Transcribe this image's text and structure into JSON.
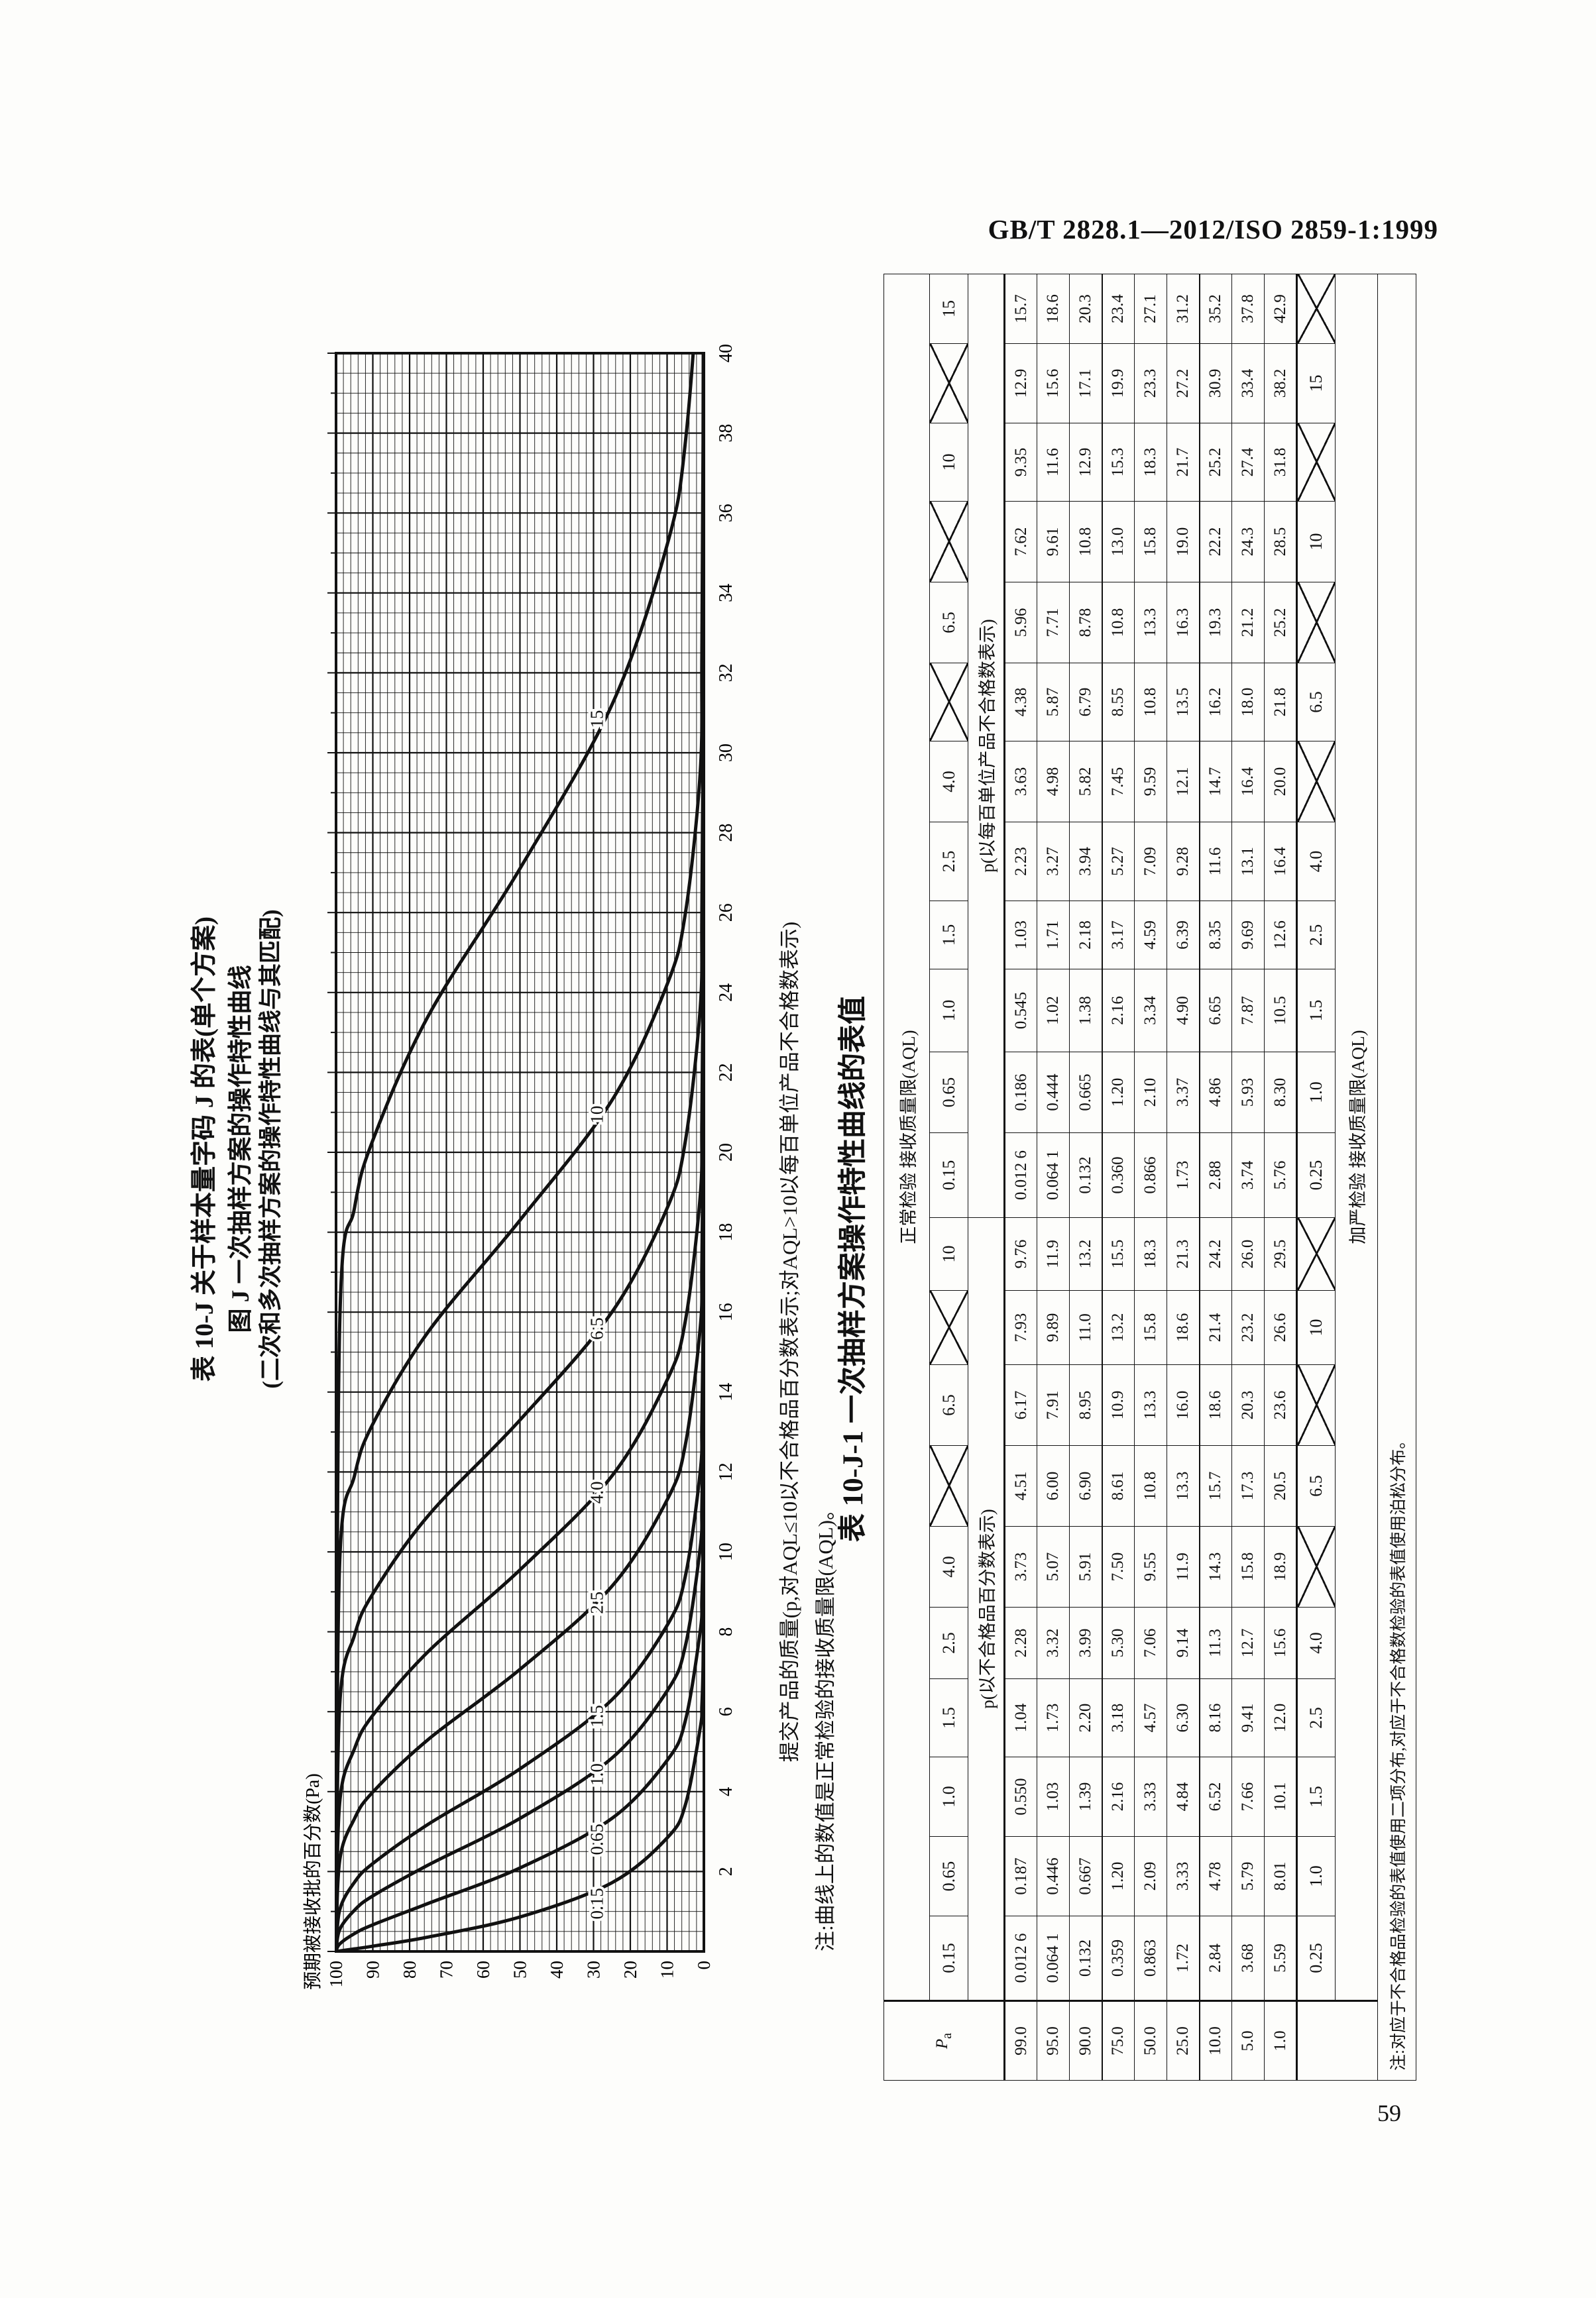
{
  "page": {
    "header_right": "GB/T 2828.1—2012/ISO 2859-1:1999",
    "page_number": "59"
  },
  "figure": {
    "title_line1": "表 10-J  关于样本量字码 J 的表(单个方案)",
    "title_line2": "图 J  一次抽样方案的操作特性曲线",
    "title_line3": "(二次和多次抽样方案的操作特性曲线与其匹配)",
    "y_axis_label": "预期被接收批的百分数(Pa)",
    "x_axis_caption": "提交产品的质量(p,对AQL≤10以不合格品百分数表示;对AQL>10以每百单位产品不合格数表示)",
    "note": "注:曲线上的数值是正常检验的接收质量限(AQL)。"
  },
  "chart_data": {
    "type": "line",
    "title": "图 J 一次抽样方案的操作特性曲线",
    "xlabel": "提交产品的质量(p)",
    "ylabel": "预期被接收批的百分数(Pa)",
    "xlim": [
      0,
      40
    ],
    "ylim": [
      0,
      100
    ],
    "x_tick_step": 2,
    "x_minor_grid": 0.5,
    "y_tick_step": 10,
    "y_minor_grid": 2,
    "grid": "on",
    "pa_levels": [
      100,
      99,
      95,
      90,
      75,
      50,
      25,
      10,
      5,
      1
    ],
    "series": [
      {
        "name": "0.15",
        "p": [
          0,
          0.0126,
          0.064,
          0.132,
          0.359,
          0.863,
          1.72,
          2.84,
          3.68,
          5.59
        ]
      },
      {
        "name": "0.65",
        "p": [
          0,
          0.187,
          0.446,
          0.667,
          1.2,
          2.09,
          3.33,
          4.78,
          5.79,
          8.01
        ]
      },
      {
        "name": "1.0",
        "p": [
          0,
          0.55,
          1.03,
          1.39,
          2.16,
          3.33,
          4.84,
          6.52,
          7.66,
          10.1
        ]
      },
      {
        "name": "1.5",
        "p": [
          0,
          1.04,
          1.73,
          2.2,
          3.18,
          4.57,
          6.3,
          8.16,
          9.41,
          12.0
        ]
      },
      {
        "name": "2.5",
        "p": [
          0,
          2.28,
          3.32,
          3.99,
          5.3,
          7.06,
          9.14,
          11.3,
          12.7,
          15.6
        ]
      },
      {
        "name": "4.0",
        "p": [
          0,
          3.73,
          5.07,
          5.91,
          7.5,
          9.55,
          11.9,
          14.3,
          15.8,
          18.9
        ]
      },
      {
        "name": "6.5",
        "p": [
          0,
          6.17,
          7.91,
          8.95,
          10.9,
          13.3,
          16.0,
          18.6,
          20.3,
          23.6
        ]
      },
      {
        "name": "10",
        "p": [
          0,
          9.76,
          11.9,
          13.2,
          15.5,
          18.3,
          21.3,
          24.2,
          26.0,
          29.5
        ]
      },
      {
        "name": "15",
        "p": [
          0,
          15.7,
          18.6,
          20.3,
          23.4,
          27.1,
          31.2,
          35.2,
          37.8,
          42.9
        ]
      }
    ]
  },
  "table": {
    "title": "表 10-J-1  一次抽样方案操作特性曲线的表值",
    "corner_label": "Pa",
    "normal_header": "正常检验  接收质量限(AQL)",
    "tightened_header": "加严检验  接收质量限(AQL)",
    "left_group_label": "p(以不合格品百分数表示)",
    "right_group_label": "p(以每百单位产品不合格数表示)",
    "normal_aql": [
      "0.15",
      "0.65",
      "1.0",
      "1.5",
      "2.5",
      "4.0",
      "X",
      "6.5",
      "X",
      "10",
      "0.15",
      "0.65",
      "1.0",
      "1.5",
      "2.5",
      "4.0",
      "X",
      "6.5",
      "X",
      "10",
      "X",
      "15"
    ],
    "tightened_aql": [
      "0.25",
      "1.0",
      "1.5",
      "2.5",
      "4.0",
      "X",
      "6.5",
      "X",
      "10",
      "X",
      "0.25",
      "1.0",
      "1.5",
      "2.5",
      "4.0",
      "X",
      "6.5",
      "X",
      "10",
      "X",
      "15",
      "X"
    ],
    "pa_values": [
      "99.0",
      "95.0",
      "90.0",
      "75.0",
      "50.0",
      "25.0",
      "10.0",
      "5.0",
      "1.0"
    ],
    "rows": [
      [
        "0.012 6",
        "0.187",
        "0.550",
        "1.04",
        "2.28",
        "3.73",
        "4.51",
        "6.17",
        "7.93",
        "9.76",
        "0.012 6",
        "0.186",
        "0.545",
        "1.03",
        "2.23",
        "3.63",
        "4.38",
        "5.96",
        "7.62",
        "9.35",
        "12.9",
        "15.7"
      ],
      [
        "0.064 1",
        "0.446",
        "1.03",
        "1.73",
        "3.32",
        "5.07",
        "6.00",
        "7.91",
        "9.89",
        "11.9",
        "0.064 1",
        "0.444",
        "1.02",
        "1.71",
        "3.27",
        "4.98",
        "5.87",
        "7.71",
        "9.61",
        "11.6",
        "15.6",
        "18.6"
      ],
      [
        "0.132",
        "0.667",
        "1.39",
        "2.20",
        "3.99",
        "5.91",
        "6.90",
        "8.95",
        "11.0",
        "13.2",
        "0.132",
        "0.665",
        "1.38",
        "2.18",
        "3.94",
        "5.82",
        "6.79",
        "8.78",
        "10.8",
        "12.9",
        "17.1",
        "20.3"
      ],
      [
        "0.359",
        "1.20",
        "2.16",
        "3.18",
        "5.30",
        "7.50",
        "8.61",
        "10.9",
        "13.2",
        "15.5",
        "0.360",
        "1.20",
        "2.16",
        "3.17",
        "5.27",
        "7.45",
        "8.55",
        "10.8",
        "13.0",
        "15.3",
        "19.9",
        "23.4"
      ],
      [
        "0.863",
        "2.09",
        "3.33",
        "4.57",
        "7.06",
        "9.55",
        "10.8",
        "13.3",
        "15.8",
        "18.3",
        "0.866",
        "2.10",
        "3.34",
        "4.59",
        "7.09",
        "9.59",
        "10.8",
        "13.3",
        "15.8",
        "18.3",
        "23.3",
        "27.1"
      ],
      [
        "1.72",
        "3.33",
        "4.84",
        "6.30",
        "9.14",
        "11.9",
        "13.3",
        "16.0",
        "18.6",
        "21.3",
        "1.73",
        "3.37",
        "4.90",
        "6.39",
        "9.28",
        "12.1",
        "13.5",
        "16.3",
        "19.0",
        "21.7",
        "27.2",
        "31.2"
      ],
      [
        "2.84",
        "4.78",
        "6.52",
        "8.16",
        "11.3",
        "14.3",
        "15.7",
        "18.6",
        "21.4",
        "24.2",
        "2.88",
        "4.86",
        "6.65",
        "8.35",
        "11.6",
        "14.7",
        "16.2",
        "19.3",
        "22.2",
        "25.2",
        "30.9",
        "35.2"
      ],
      [
        "3.68",
        "5.79",
        "7.66",
        "9.41",
        "12.7",
        "15.8",
        "17.3",
        "20.3",
        "23.2",
        "26.0",
        "3.74",
        "5.93",
        "7.87",
        "9.69",
        "13.1",
        "16.4",
        "18.0",
        "21.2",
        "24.3",
        "27.4",
        "33.4",
        "37.8"
      ],
      [
        "5.59",
        "8.01",
        "10.1",
        "12.0",
        "15.6",
        "18.9",
        "20.5",
        "23.6",
        "26.6",
        "29.5",
        "5.76",
        "8.30",
        "10.5",
        "12.6",
        "16.4",
        "20.0",
        "21.8",
        "25.2",
        "28.5",
        "31.8",
        "38.2",
        "42.9"
      ]
    ],
    "note": "注:对应于不合格品检验的表值使用二项分布,对应于不合格数检验的表值使用泊松分布。"
  }
}
